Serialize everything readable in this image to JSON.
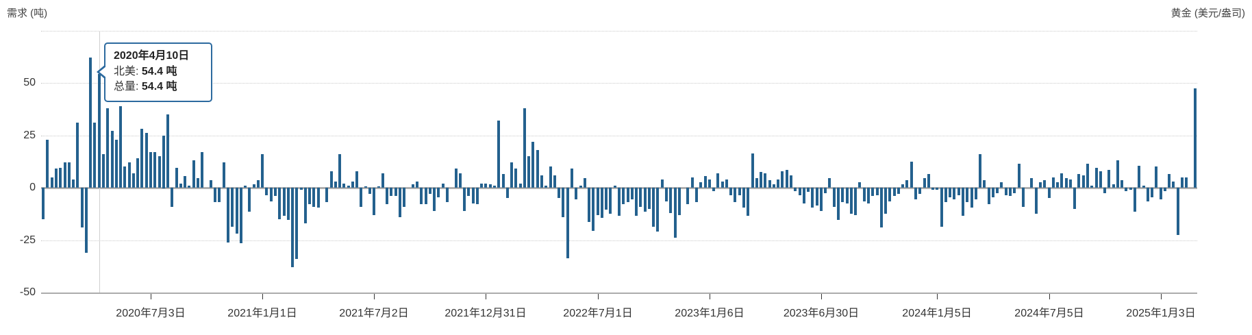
{
  "header": {
    "left_axis_title": "需求 (吨)",
    "right_axis_title": "黄金 (美元/盎司)"
  },
  "tooltip": {
    "date": "2020年4月10日",
    "rows": [
      {
        "label": "北美:",
        "value": "54.4 吨"
      },
      {
        "label": "总量:",
        "value": "54.4 吨"
      }
    ]
  },
  "y_axis": {
    "ticks": [
      {
        "label": "50",
        "value": 50
      },
      {
        "label": "25",
        "value": 25
      },
      {
        "label": "0",
        "value": 0
      },
      {
        "label": "-25",
        "value": -25
      },
      {
        "label": "-50",
        "value": -50
      }
    ],
    "unlabeled_gridline_values": [
      75,
      50,
      25,
      -25
    ]
  },
  "x_axis": {
    "ticks": [
      {
        "label": "2020年7月3日",
        "index": 25
      },
      {
        "label": "2021年1月1日",
        "index": 51
      },
      {
        "label": "2021年7月2日",
        "index": 77
      },
      {
        "label": "2021年12月31日",
        "index": 103
      },
      {
        "label": "2022年7月1日",
        "index": 129
      },
      {
        "label": "2023年1月6日",
        "index": 155
      },
      {
        "label": "2023年6月30日",
        "index": 181
      },
      {
        "label": "2024年1月5日",
        "index": 208
      },
      {
        "label": "2024年7月5日",
        "index": 234
      },
      {
        "label": "2025年1月3日",
        "index": 260
      }
    ]
  },
  "colors": {
    "bar": "#24618e",
    "tooltip_border": "#2c6a9f",
    "crosshair": "#cfcfcf",
    "gridline": "#c9c9c9",
    "axis_text": "#333333"
  },
  "chart_data": {
    "type": "bar",
    "title": "需求 (吨)",
    "ylabel": "需求 (吨)",
    "y2label": "黄金 (美元/盎司)",
    "ylim": [
      -50,
      75
    ],
    "grid": "dotted-horizontal",
    "legend": "none",
    "frequency": "weekly",
    "highlight": {
      "index": 13,
      "date": "2020年4月10日",
      "series": "北美",
      "value": 54.4,
      "total": 54.4
    },
    "values": [
      -15,
      23,
      5,
      9,
      9.5,
      12,
      12,
      4,
      31,
      -19,
      -31,
      62,
      31,
      54.4,
      16,
      38,
      27,
      23,
      39,
      10,
      12,
      7,
      14,
      28,
      26,
      17,
      17,
      15,
      25,
      35,
      -9,
      9.5,
      2,
      5.5,
      1,
      13,
      4.5,
      17,
      0,
      3.5,
      -7,
      -7,
      12,
      -26,
      -18.5,
      -22,
      -26.5,
      1,
      -11.5,
      1.5,
      3.5,
      16,
      -3.5,
      -6.5,
      -4,
      -15,
      -13.5,
      -15.5,
      -38,
      -34,
      -1,
      -17,
      -8,
      -9,
      -9.5,
      0,
      -7,
      8,
      3,
      16,
      2,
      1,
      3,
      8,
      -9,
      0.5,
      -3,
      -13,
      0.5,
      7,
      -8,
      -4,
      -4,
      -14,
      -9,
      0,
      1.5,
      3,
      -8,
      -8,
      -3,
      -11,
      -4.5,
      2,
      -7,
      0,
      9,
      7,
      -11,
      -4,
      -7.5,
      -8,
      2,
      2,
      1.5,
      1,
      32,
      6.5,
      -5,
      12,
      9,
      2,
      38,
      15,
      22,
      18,
      6,
      1,
      10,
      6,
      -5,
      -14,
      -33.5,
      9,
      -5.5,
      1,
      4.5,
      -16.5,
      -20.5,
      -13,
      -14.5,
      -10.5,
      -12.5,
      1,
      -13.5,
      -8,
      -7,
      -5.5,
      -13.5,
      -9,
      -11.5,
      -10,
      -18.5,
      -21,
      4,
      -6.5,
      -12,
      -24,
      -13,
      0,
      -8,
      5,
      -7,
      2.5,
      5.5,
      4,
      -1.5,
      7,
      3,
      4,
      -3.5,
      -7,
      -3.5,
      -9.5,
      -13.5,
      16.5,
      4.5,
      7.5,
      7,
      3.5,
      1.5,
      4,
      8,
      8.5,
      6,
      -1.5,
      -3.5,
      -7.5,
      -2,
      -9.5,
      -8.5,
      -11,
      -2.5,
      4.5,
      -9,
      -15.5,
      -7,
      -7.5,
      -12.5,
      -13,
      2.5,
      -6.5,
      -7.5,
      -4,
      -3.5,
      -19,
      -12.5,
      -6.5,
      -4,
      -3,
      1.5,
      3.5,
      12.5,
      -5.5,
      -3,
      4.5,
      6.5,
      -1,
      -1,
      -18.5,
      -7,
      -4.5,
      -5.5,
      -3.5,
      -13.5,
      -7,
      -9.5,
      -5.5,
      16,
      3.5,
      -8,
      -4.5,
      -2.5,
      2.5,
      -3.5,
      -4,
      -2.5,
      11.5,
      -9,
      0,
      4.5,
      -12.5,
      2.5,
      3.5,
      -5,
      5,
      2.5,
      7,
      4.5,
      4,
      -10,
      6.5,
      6,
      11.5,
      1,
      9.5,
      8,
      -2.5,
      8.5,
      1.5,
      13,
      3.5,
      -1.5,
      -1,
      -11.5,
      10.5,
      1,
      -6.5,
      -4.5,
      10,
      -5.5,
      -1.5,
      6.5,
      3,
      -22.5,
      5,
      5,
      0,
      47.5
    ]
  }
}
